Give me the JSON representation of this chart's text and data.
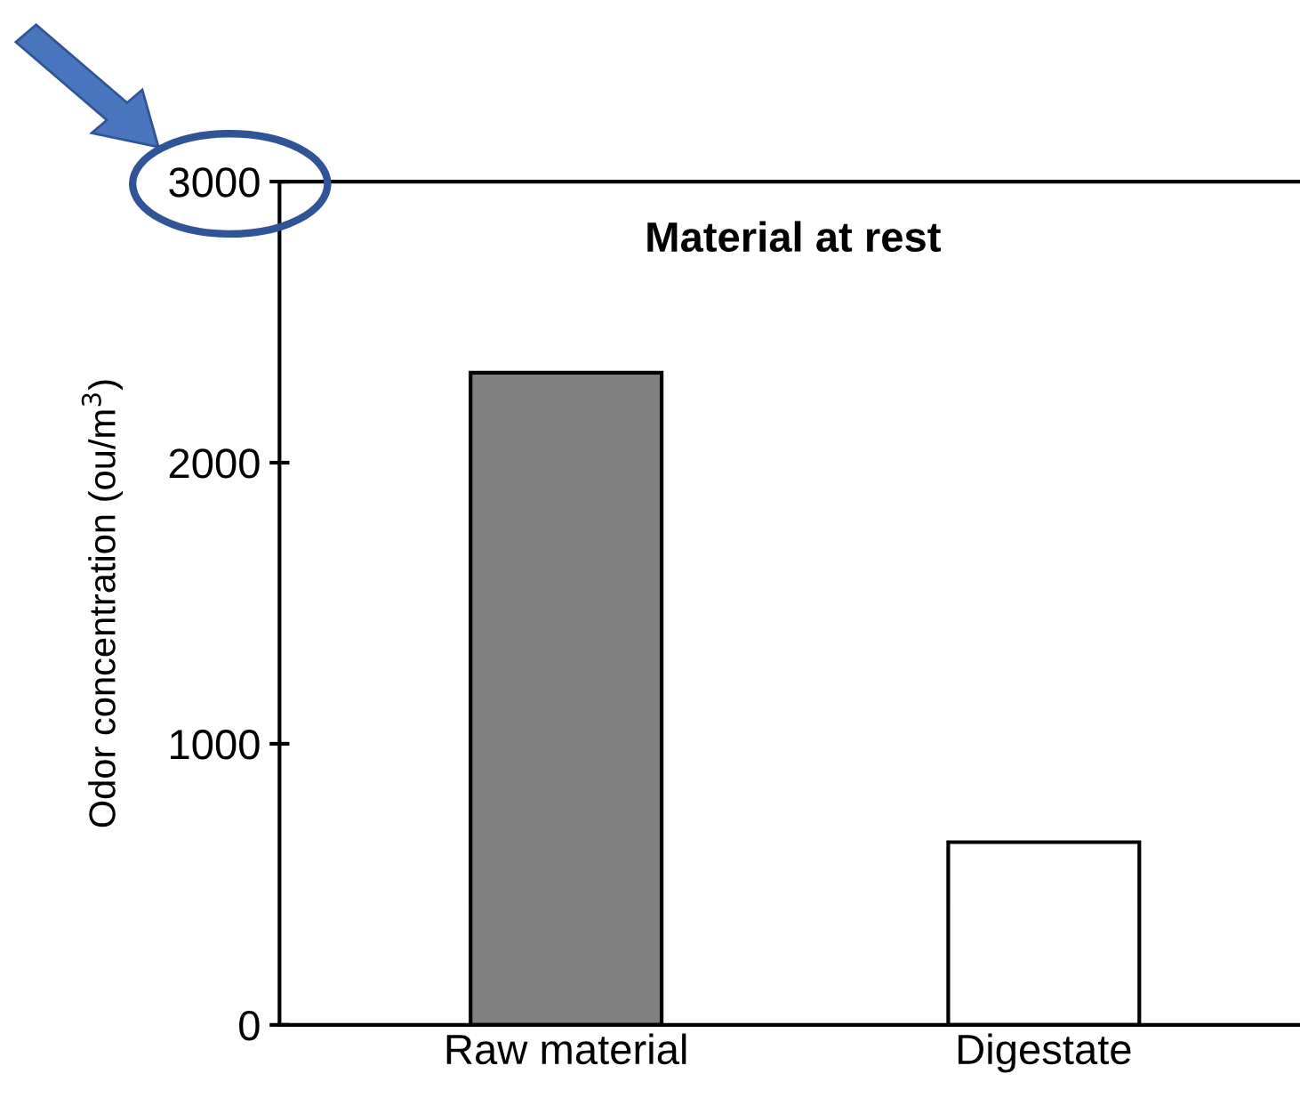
{
  "chart_data": {
    "type": "bar",
    "title": "Material at rest",
    "ylabel": "Odor concentration (ou/m$^{3}$)",
    "categories": [
      "Raw material",
      "Digestate"
    ],
    "values": [
      2320,
      650
    ],
    "colors": [
      "#808080",
      "#ffffff"
    ],
    "ylim": [
      0,
      3000
    ],
    "yticks": [
      0,
      1000,
      2000,
      3000
    ],
    "grid": false,
    "legend": false
  }
}
